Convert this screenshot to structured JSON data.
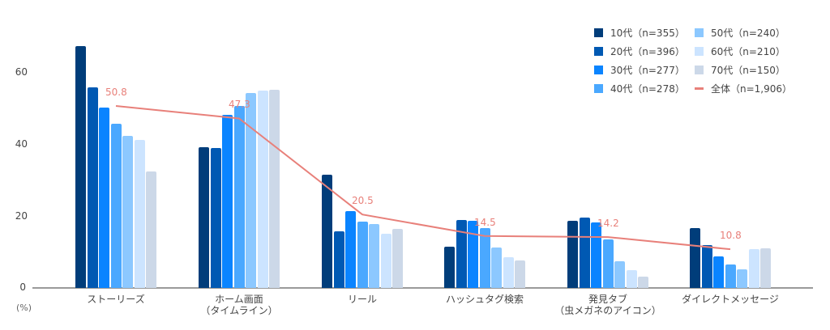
{
  "chart_data": {
    "type": "bar",
    "title": "",
    "xlabel": "",
    "ylabel": "(%)",
    "ylim": [
      0,
      70
    ],
    "yticks": [
      0,
      20,
      40,
      60
    ],
    "grid": false,
    "legend_position": "top-right",
    "categories": [
      "ストーリーズ",
      "ホーム画面\n（タイムライン）",
      "リール",
      "ハッシュタグ検索",
      "発見タブ\n（虫メガネのアイコン）",
      "ダイレクトメッセージ"
    ],
    "series": [
      {
        "name": "10代（n=355）",
        "color": "#003d7a",
        "values": [
          67.5,
          39.3,
          31.6,
          11.5,
          18.7,
          16.7
        ]
      },
      {
        "name": "20代（n=396）",
        "color": "#0059b3",
        "values": [
          56.0,
          39.0,
          15.8,
          19.0,
          19.6,
          12.0
        ]
      },
      {
        "name": "30代（n=277）",
        "color": "#0a84ff",
        "values": [
          50.3,
          48.3,
          21.4,
          18.7,
          18.3,
          8.8
        ]
      },
      {
        "name": "40代（n=278）",
        "color": "#4aa8ff",
        "values": [
          45.8,
          50.8,
          18.5,
          16.7,
          13.5,
          6.5
        ]
      },
      {
        "name": "50代（n=240）",
        "color": "#8cc8ff",
        "values": [
          42.4,
          54.4,
          17.9,
          11.3,
          7.4,
          5.2
        ]
      },
      {
        "name": "60代（n=210）",
        "color": "#cce4ff",
        "values": [
          41.3,
          55.1,
          15.1,
          8.6,
          5.0,
          10.8
        ]
      },
      {
        "name": "70代（n=150）",
        "color": "#ccd8e8",
        "values": [
          32.5,
          55.3,
          16.5,
          7.7,
          3.2,
          11.1
        ]
      }
    ],
    "line_series": {
      "name": "全体（n=1,906）",
      "color": "#e8807a",
      "type": "line",
      "values": [
        50.8,
        47.3,
        20.5,
        14.5,
        14.2,
        10.8
      ],
      "labels": [
        "50.8",
        "47.3",
        "20.5",
        "14.5",
        "14.2",
        "10.8"
      ]
    }
  },
  "axis": {
    "y_tick_labels": [
      "0",
      "20",
      "40",
      "60"
    ],
    "unit_label": "(%)"
  },
  "legend": {
    "items": [
      {
        "label": "10代（n=355）",
        "color": "#003d7a",
        "kind": "box"
      },
      {
        "label": "20代（n=396）",
        "color": "#0059b3",
        "kind": "box"
      },
      {
        "label": "30代（n=277）",
        "color": "#0a84ff",
        "kind": "box"
      },
      {
        "label": "40代（n=278）",
        "color": "#4aa8ff",
        "kind": "box"
      },
      {
        "label": "50代（n=240）",
        "color": "#8cc8ff",
        "kind": "box"
      },
      {
        "label": "60代（n=210）",
        "color": "#cce4ff",
        "kind": "box"
      },
      {
        "label": "70代（n=150）",
        "color": "#ccd8e8",
        "kind": "box"
      },
      {
        "label": "全体（n=1,906）",
        "color": "#e8807a",
        "kind": "line"
      }
    ]
  }
}
